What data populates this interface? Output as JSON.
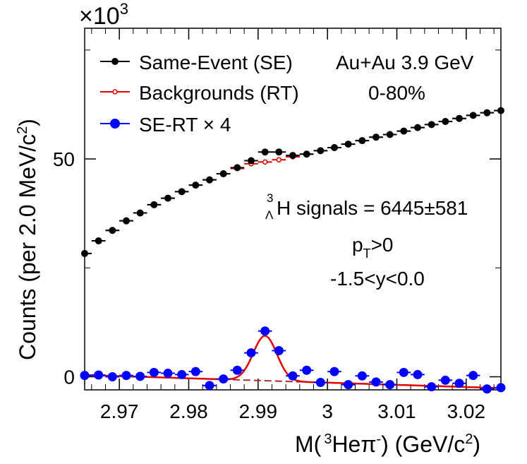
{
  "chart_data": {
    "type": "scatter",
    "title": "",
    "xlabel_parts": {
      "main": "M(",
      "sup1": "3",
      "mid": "He",
      "pi": "π",
      "sup2": "-",
      "end": ") (GeV/c",
      "sup3": "2",
      "close": ")"
    },
    "ylabel_parts": {
      "main": "Counts (per 2.0 MeV/c",
      "sup": "2",
      "close": ")"
    },
    "xlim": [
      2.965,
      3.025
    ],
    "ylim": [
      -3,
      80
    ],
    "y_scale_note": "×10",
    "y_scale_exp": "3",
    "x_ticks": [
      "2.97",
      "2.98",
      "2.99",
      "3",
      "3.01",
      "3.02"
    ],
    "x_tick_values": [
      2.97,
      2.98,
      2.99,
      3.0,
      3.01,
      3.02
    ],
    "y_ticks": [
      "0",
      "50"
    ],
    "y_tick_values": [
      0,
      50
    ],
    "legend": [
      {
        "label": "Same-Event (SE)",
        "color": "#000000",
        "marker": "filled-circle"
      },
      {
        "label": "Backgrounds (RT)",
        "color": "#e00000",
        "marker": "open-circle"
      },
      {
        "label": "SE-RT × 4",
        "color": "#0000ff",
        "marker": "filled-circle"
      }
    ],
    "annotations": {
      "system": "Au+Au 3.9 GeV",
      "centrality": "0-80%",
      "signal_prefix_sup": "3",
      "signal_prefix_sub": "Λ",
      "signal_text": "H signals = 6445±581",
      "pt_main": "p",
      "pt_sub": "T",
      "pt_rest": ">0",
      "rapidity": "-1.5<y<0.0"
    },
    "series": [
      {
        "name": "Same-Event (SE)",
        "color": "#000000",
        "x": [
          2.965,
          2.967,
          2.969,
          2.971,
          2.973,
          2.975,
          2.977,
          2.979,
          2.981,
          2.983,
          2.985,
          2.987,
          2.989,
          2.991,
          2.993,
          2.995,
          2.997,
          2.999,
          3.001,
          3.003,
          3.005,
          3.007,
          3.009,
          3.011,
          3.013,
          3.015,
          3.017,
          3.019,
          3.021,
          3.023,
          3.025
        ],
        "y": [
          28.3,
          31.2,
          33.6,
          35.8,
          37.6,
          39.5,
          41.0,
          42.5,
          44.0,
          45.2,
          46.6,
          48.0,
          49.6,
          51.6,
          51.6,
          50.8,
          51.1,
          51.9,
          52.6,
          53.4,
          54.2,
          55.0,
          55.6,
          56.4,
          57.2,
          57.9,
          58.6,
          59.3,
          60.0,
          60.6,
          61.1
        ]
      },
      {
        "name": "Backgrounds (RT)",
        "color": "#e00000",
        "x": [
          2.965,
          2.967,
          2.969,
          2.971,
          2.973,
          2.975,
          2.977,
          2.979,
          2.981,
          2.983,
          2.985,
          2.987,
          2.989,
          2.991,
          2.993,
          2.995,
          2.997,
          2.999,
          3.001,
          3.003,
          3.005,
          3.007,
          3.009,
          3.011,
          3.013,
          3.015,
          3.017,
          3.019,
          3.021,
          3.023,
          3.025
        ],
        "y": [
          28.3,
          31.2,
          33.6,
          35.8,
          37.6,
          39.5,
          41.0,
          42.5,
          44.0,
          45.2,
          46.6,
          47.8,
          48.9,
          49.3,
          49.8,
          50.5,
          51.1,
          51.9,
          52.6,
          53.4,
          54.2,
          55.0,
          55.6,
          56.4,
          57.2,
          57.9,
          58.6,
          59.3,
          60.0,
          60.6,
          61.1
        ]
      },
      {
        "name": "SE-RT × 4",
        "color": "#0000ff",
        "x": [
          2.965,
          2.967,
          2.969,
          2.971,
          2.973,
          2.975,
          2.977,
          2.979,
          2.981,
          2.983,
          2.985,
          2.987,
          2.989,
          2.991,
          2.993,
          2.995,
          2.997,
          2.999,
          3.001,
          3.003,
          3.005,
          3.007,
          3.009,
          3.011,
          3.013,
          3.015,
          3.017,
          3.019,
          3.021,
          3.023,
          3.025
        ],
        "y": [
          0.3,
          0.4,
          0.0,
          0.3,
          0.1,
          1.0,
          0.8,
          0.5,
          1.2,
          -2.0,
          -0.5,
          1.5,
          5.5,
          10.5,
          6.0,
          0.2,
          1.5,
          -1.3,
          1.2,
          -1.8,
          0.2,
          -1.2,
          -1.8,
          1.0,
          0.5,
          -2.3,
          -0.8,
          -1.5,
          0.3,
          -2.8,
          -2.5
        ]
      }
    ],
    "fit_gauss": {
      "amplitude": 10.3,
      "mean": 2.991,
      "sigma": 0.0017,
      "bg_a": 0.4,
      "bg_slope": -50
    },
    "colors": {
      "fit": "#e00000",
      "bg_dash": "#a03030"
    }
  }
}
